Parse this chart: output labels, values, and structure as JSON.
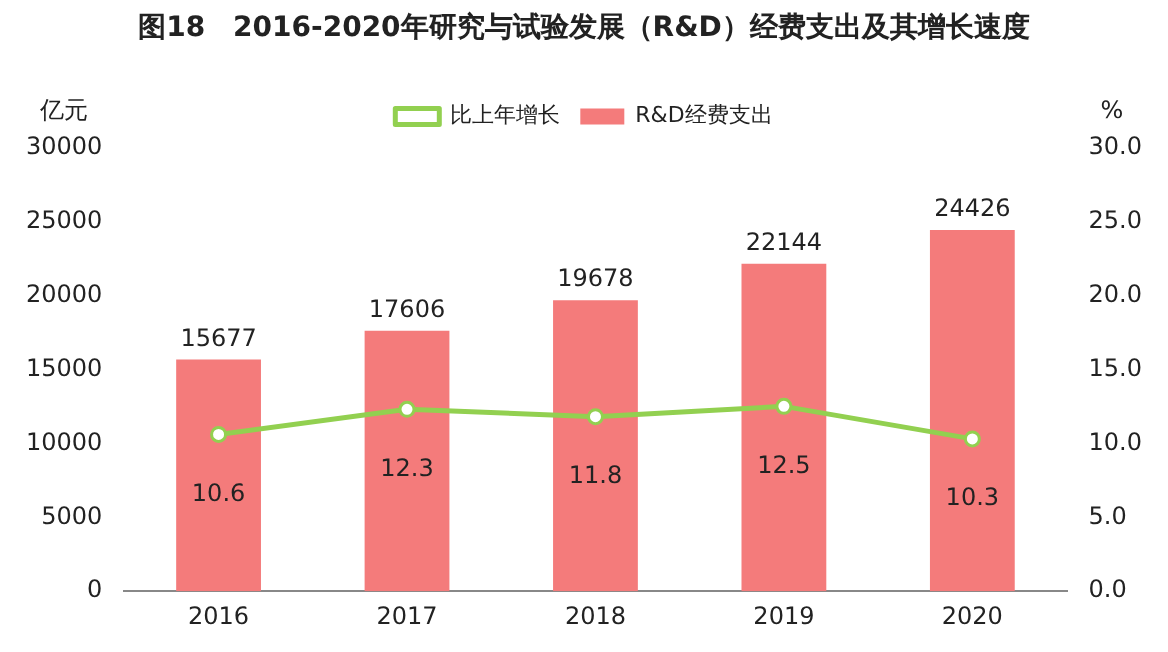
{
  "chart_data": {
    "type": "bar",
    "title": "图18　2016-2020年研究与试验发展（R&D）经费支出及其增长速度",
    "ylabel": "亿元",
    "y2label": "%",
    "categories": [
      "2016",
      "2017",
      "2018",
      "2019",
      "2020"
    ],
    "series": [
      {
        "name": "R&D经费支出",
        "color": "#f47b7b",
        "values": [
          15677,
          17606,
          19678,
          22144,
          24426
        ]
      },
      {
        "name": "比上年增长",
        "type": "line",
        "axis": "y2",
        "color": "#92d050",
        "values": [
          10.6,
          12.3,
          11.8,
          12.5,
          10.3
        ]
      }
    ],
    "ylim": [
      0,
      30000
    ],
    "yticks": [
      0,
      5000,
      10000,
      15000,
      20000,
      25000,
      30000
    ],
    "y2lim": [
      0,
      30
    ],
    "y2ticks": [
      {
        "value": 0,
        "label": "0.0"
      },
      {
        "value": 5,
        "label": "5.0"
      },
      {
        "value": 10,
        "label": "10.0"
      },
      {
        "value": 15,
        "label": "15.0"
      },
      {
        "value": 20,
        "label": "20.0"
      },
      {
        "value": 25,
        "label": "25.0"
      },
      {
        "value": 30,
        "label": "30.0"
      }
    ],
    "data_labels": true,
    "grid": false,
    "legend": "top",
    "marker": "circle",
    "line_style": "solid"
  }
}
